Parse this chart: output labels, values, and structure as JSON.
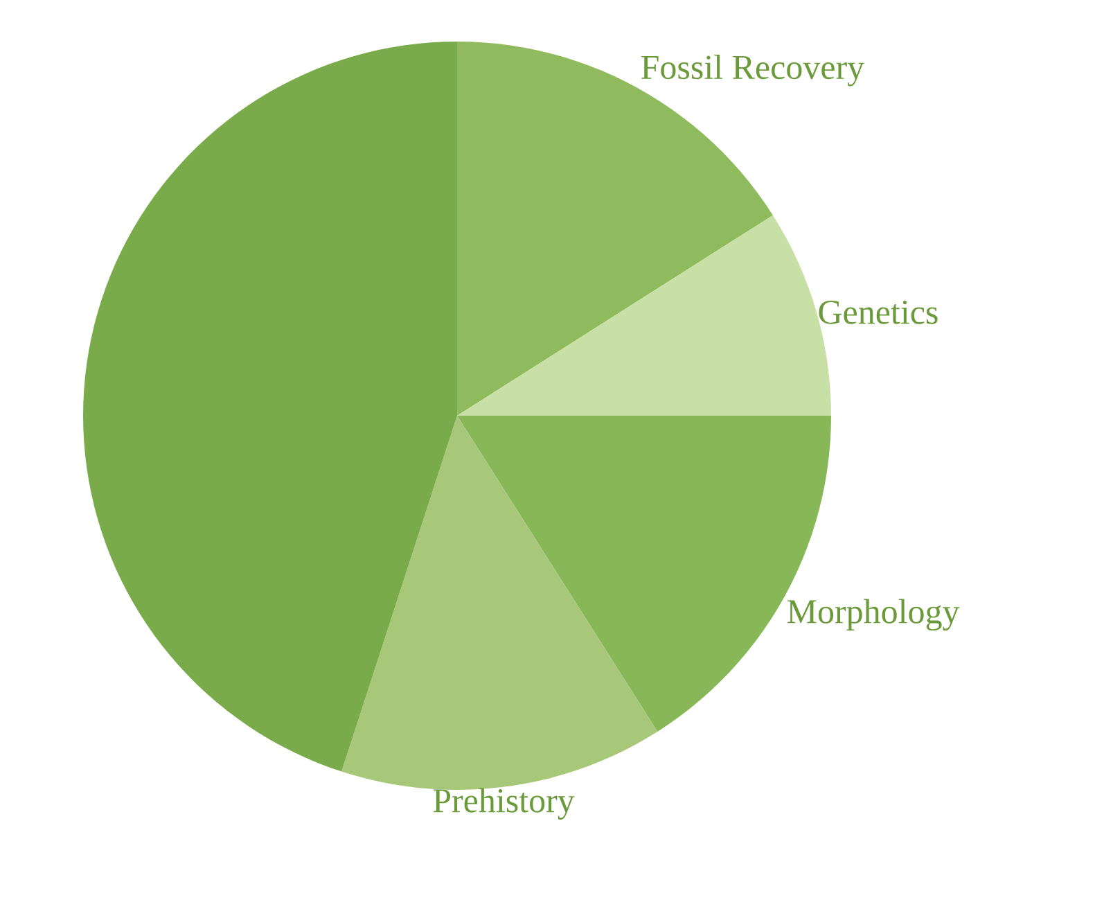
{
  "chart_data": {
    "type": "pie",
    "categories": [
      "Fossil Recovery",
      "Genetics",
      "Morphology",
      "Prehistory",
      null
    ],
    "values": [
      16,
      9,
      16,
      14,
      45
    ],
    "colors": [
      "#8fbb5e",
      "#c8dfa5",
      "#88b758",
      "#a6c878",
      "#7aab4a"
    ]
  }
}
